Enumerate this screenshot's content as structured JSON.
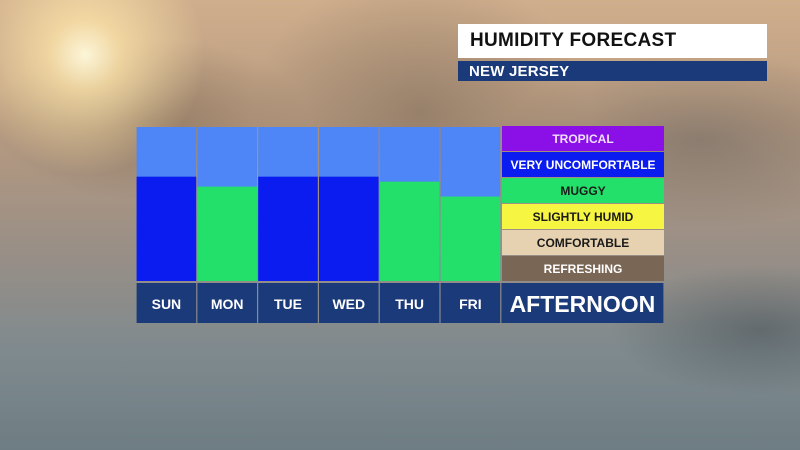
{
  "header": {
    "title": "HUMIDITY FORECAST",
    "location": "NEW JERSEY"
  },
  "chart_data": {
    "type": "bar",
    "categories": [
      "SUN",
      "MON",
      "TUE",
      "WED",
      "THU",
      "FRI"
    ],
    "period_label": "AFTERNOON",
    "level_scale": [
      "REFRESHING",
      "COMFORTABLE",
      "SLIGHTLY HUMID",
      "MUGGY",
      "VERY UNCOMFORTABLE",
      "TROPICAL"
    ],
    "values": [
      4.2,
      3.8,
      4.2,
      4.2,
      4.0,
      3.4
    ],
    "bar_levels": [
      "VERY UNCOMFORTABLE",
      "MUGGY",
      "VERY UNCOMFORTABLE",
      "VERY UNCOMFORTABLE",
      "MUGGY",
      "MUGGY"
    ],
    "ylim": [
      0,
      6.2
    ],
    "legend_placement": "right",
    "colors": {
      "TROPICAL": "#8b10e8",
      "VERY UNCOMFORTABLE": "#0a1cf0",
      "MUGGY": "#22e06a",
      "SLIGHTLY HUMID": "#f5f542",
      "COMFORTABLE": "#e6d2b0",
      "REFRESHING": "#7a6654",
      "empty": "#4f86f7",
      "label_bar": "#1b3a7a",
      "divider": "#1b3a7a"
    }
  }
}
